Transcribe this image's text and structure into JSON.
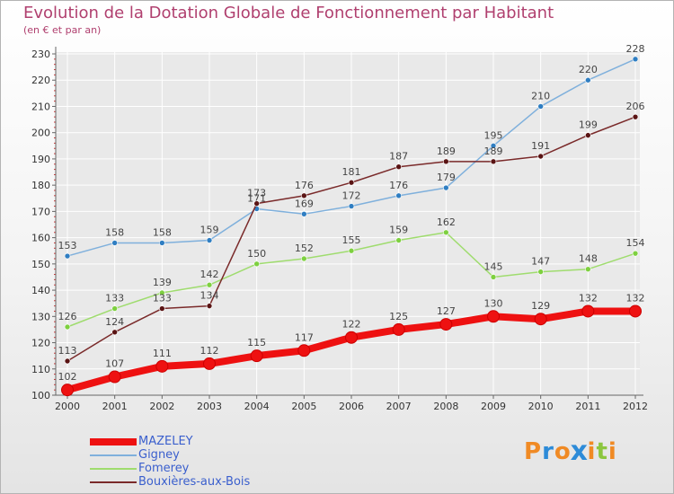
{
  "title": "Evolution de la Dotation Globale de Fonctionnement par Habitant",
  "subtitle": "(en € et par an)",
  "logo": {
    "text": "Proxiti",
    "letters": [
      "P",
      "r",
      "o",
      "x",
      "i",
      "t",
      "i"
    ],
    "letter_colors": [
      "#f08a24",
      "#2d8bd8",
      "#f08a24",
      "#2d8bd8",
      "#f08a24",
      "#8cc63f",
      "#f08a24"
    ]
  },
  "colors": {
    "title": "#b0406f",
    "axis": "#666666",
    "grid": "#ffffff",
    "tick_label": "#333333",
    "value_label": "#444444",
    "legend_label": "#3a5fcd"
  },
  "chart_data": {
    "type": "line",
    "title": "Evolution de la Dotation Globale de Fonctionnement par Habitant",
    "subtitle": "(en € et par an)",
    "xlabel": "",
    "ylabel": "",
    "x": [
      "2000",
      "2001",
      "2002",
      "2003",
      "2004",
      "2005",
      "2006",
      "2007",
      "2008",
      "2009",
      "2010",
      "2011",
      "2012"
    ],
    "yticks": [
      100,
      110,
      120,
      130,
      140,
      150,
      160,
      170,
      180,
      190,
      200,
      210,
      220,
      230
    ],
    "ylim": [
      100,
      230
    ],
    "grid": true,
    "legend_position": "bottom-left",
    "series": [
      {
        "name": "MAZELEY",
        "values": [
          102,
          107,
          111,
          112,
          115,
          117,
          122,
          125,
          127,
          130,
          129,
          132,
          132
        ],
        "color": "#ee1111",
        "marker_color": "#ee1111",
        "emphasis": true
      },
      {
        "name": "Gigney",
        "values": [
          153,
          158,
          158,
          159,
          171,
          169,
          172,
          176,
          179,
          195,
          210,
          220,
          228
        ],
        "color": "#7fb0dc",
        "marker_color": "#2f7ec2",
        "emphasis": false
      },
      {
        "name": "Fomerey",
        "values": [
          126,
          133,
          139,
          142,
          150,
          152,
          155,
          159,
          162,
          145,
          147,
          148,
          154
        ],
        "color": "#9fdc6e",
        "marker_color": "#7ed040",
        "emphasis": false
      },
      {
        "name": "Bouxières-aux-Bois",
        "values": [
          113,
          124,
          133,
          134,
          173,
          176,
          181,
          187,
          189,
          189,
          191,
          199,
          206
        ],
        "color": "#7a2a2a",
        "marker_color": "#5a1414",
        "emphasis": false
      }
    ]
  }
}
